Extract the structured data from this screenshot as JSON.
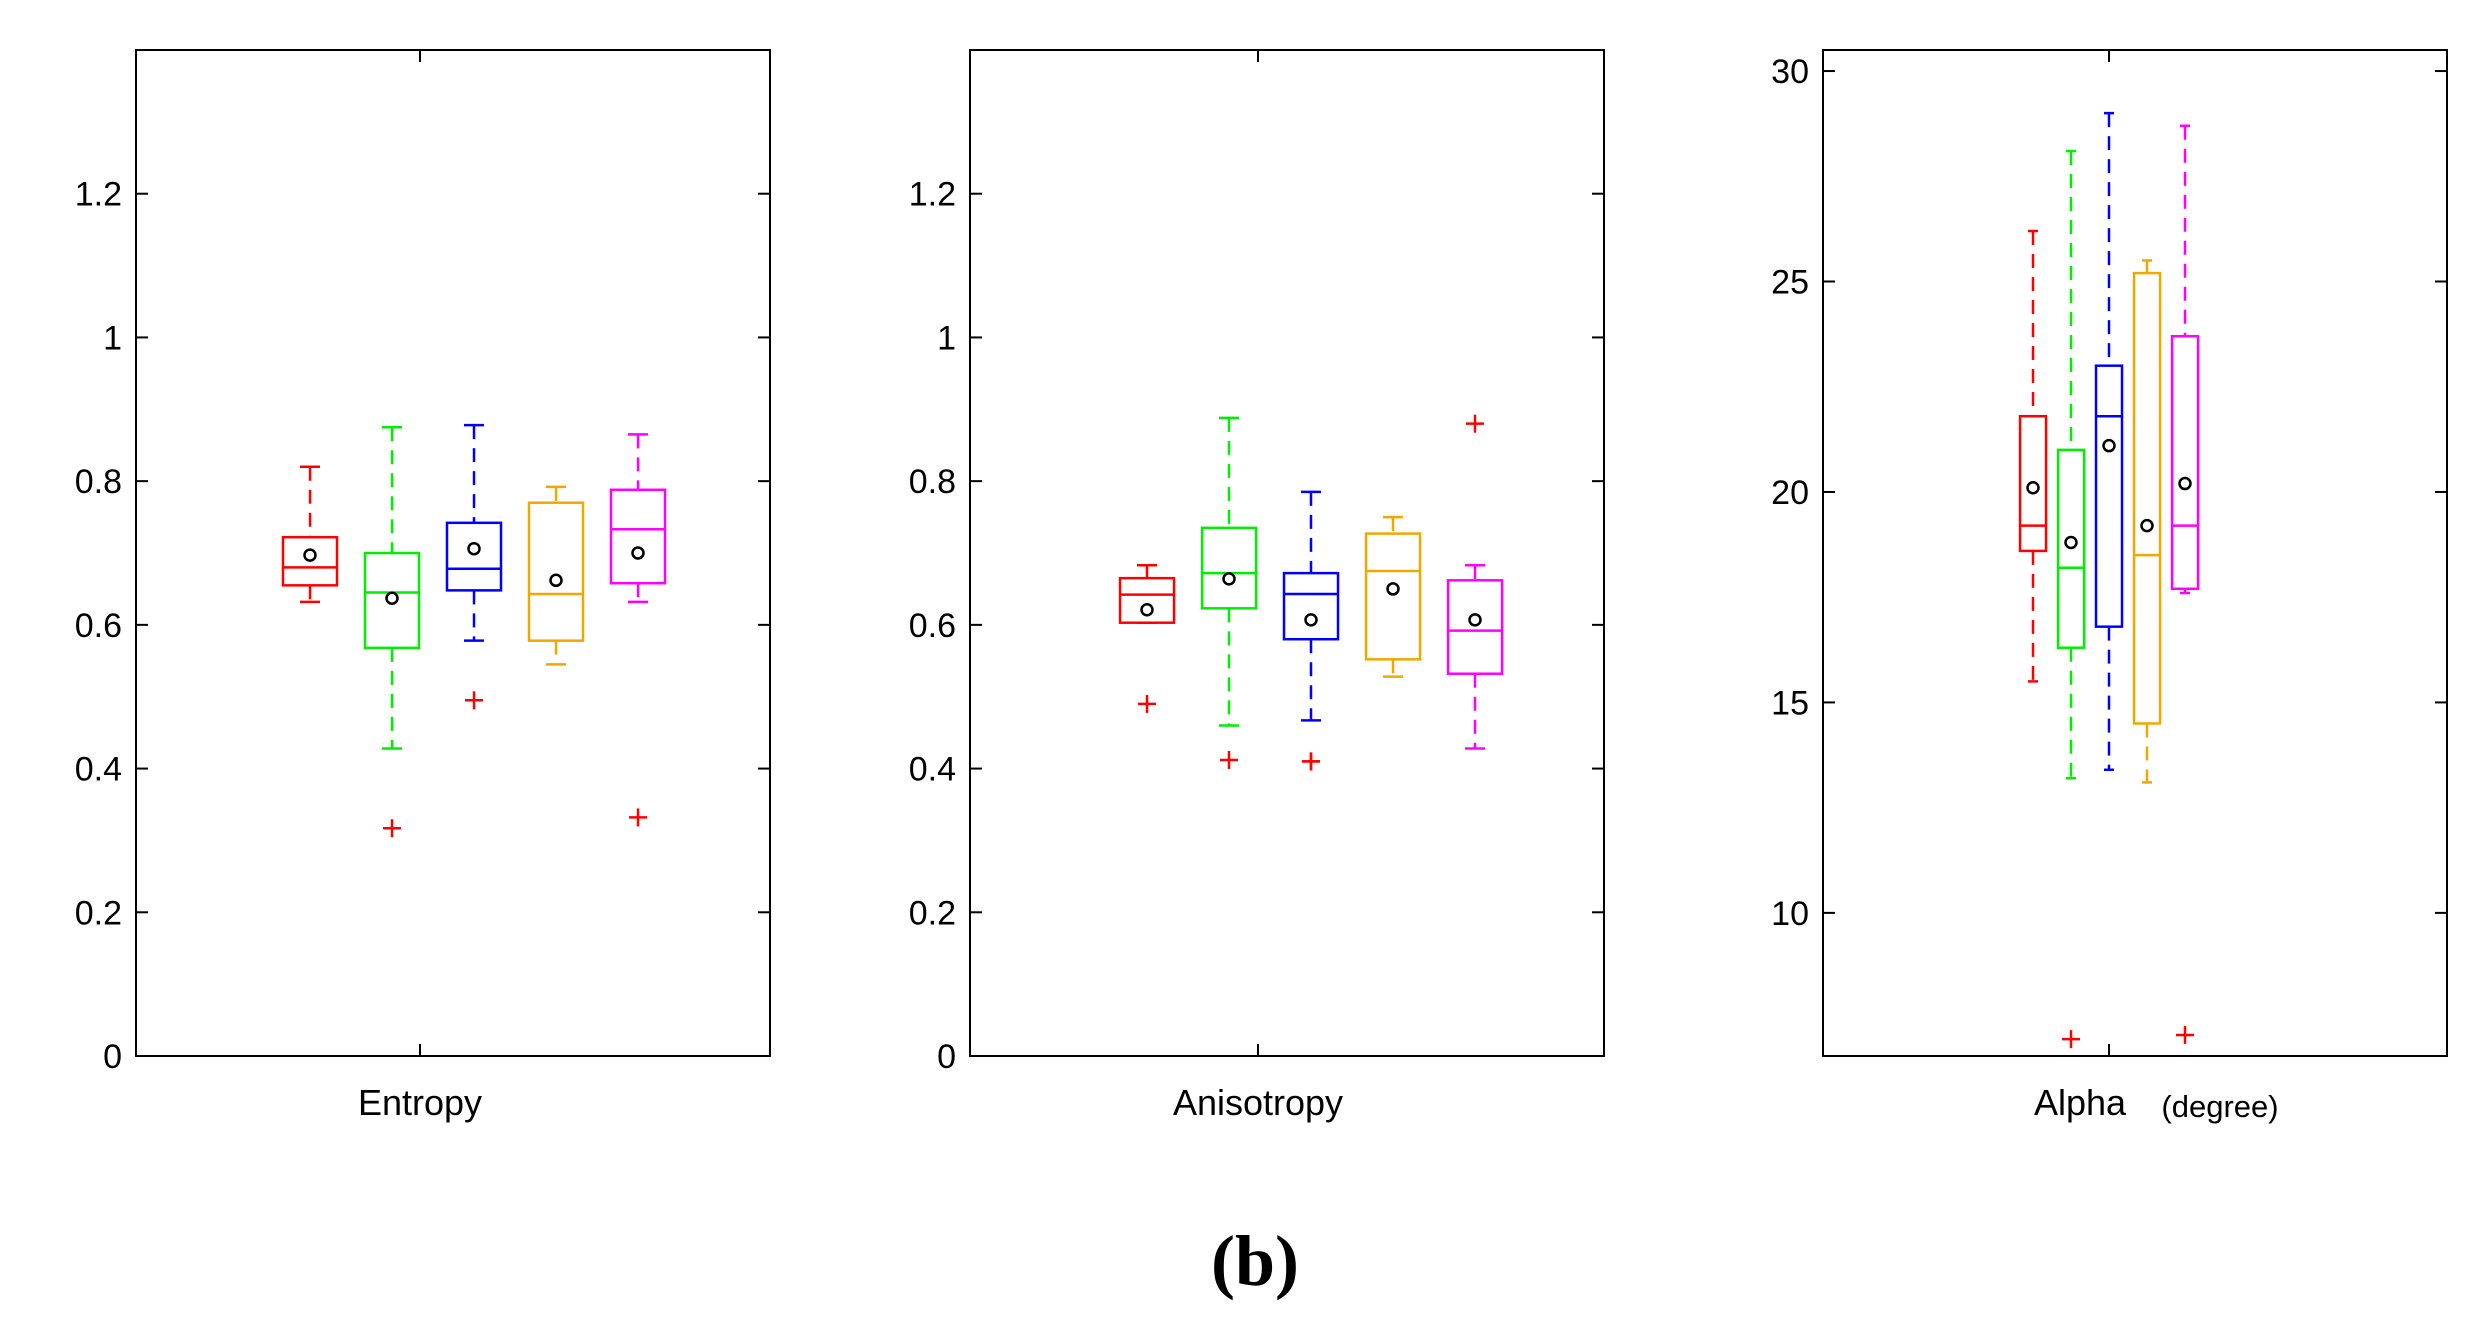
{
  "figure": {
    "caption_label": "(b)",
    "series_colors": [
      "#ff0000",
      "#00ee00",
      "#0000ff",
      "#f0a800",
      "#ff00ff"
    ],
    "mean_marker_color": "#000000",
    "outlier_color": "#ff0000"
  },
  "chart_data": [
    {
      "type": "boxplot",
      "title": "",
      "xlabel": "Entropy",
      "xlabel_unit": "",
      "ylim": [
        0,
        1.4
      ],
      "yticks": [
        0,
        0.2,
        0.4,
        0.6,
        0.8,
        1,
        1.2
      ],
      "ytick_labels": [
        "0",
        "0.2",
        "0.4",
        "0.6",
        "0.8",
        "1",
        "1.2"
      ],
      "grid": false,
      "boxes": [
        {
          "min": 0.632,
          "q1": 0.655,
          "median": 0.68,
          "q3": 0.722,
          "max": 0.82,
          "mean": 0.697,
          "outliers": []
        },
        {
          "min": 0.428,
          "q1": 0.568,
          "median": 0.645,
          "q3": 0.7,
          "max": 0.875,
          "mean": 0.637,
          "outliers": [
            0.317
          ]
        },
        {
          "min": 0.578,
          "q1": 0.648,
          "median": 0.678,
          "q3": 0.742,
          "max": 0.878,
          "mean": 0.706,
          "outliers": [
            0.495
          ]
        },
        {
          "min": 0.545,
          "q1": 0.578,
          "median": 0.643,
          "q3": 0.77,
          "max": 0.792,
          "mean": 0.662,
          "outliers": []
        },
        {
          "min": 0.632,
          "q1": 0.658,
          "median": 0.733,
          "q3": 0.788,
          "max": 0.865,
          "mean": 0.7,
          "outliers": [
            0.332
          ]
        }
      ]
    },
    {
      "type": "boxplot",
      "title": "",
      "xlabel": "Anisotropy",
      "xlabel_unit": "",
      "ylim": [
        0,
        1.4
      ],
      "yticks": [
        0,
        0.2,
        0.4,
        0.6,
        0.8,
        1,
        1.2
      ],
      "ytick_labels": [
        "0",
        "0.2",
        "0.4",
        "0.6",
        "0.8",
        "1",
        "1.2"
      ],
      "grid": false,
      "boxes": [
        {
          "min": 0.603,
          "q1": 0.603,
          "median": 0.642,
          "q3": 0.665,
          "max": 0.683,
          "mean": 0.621,
          "outliers": [
            0.49
          ]
        },
        {
          "min": 0.46,
          "q1": 0.623,
          "median": 0.672,
          "q3": 0.735,
          "max": 0.888,
          "mean": 0.664,
          "outliers": [
            0.412
          ]
        },
        {
          "min": 0.467,
          "q1": 0.58,
          "median": 0.643,
          "q3": 0.672,
          "max": 0.785,
          "mean": 0.607,
          "outliers": [
            0.41,
            0.41
          ]
        },
        {
          "min": 0.528,
          "q1": 0.552,
          "median": 0.675,
          "q3": 0.727,
          "max": 0.75,
          "mean": 0.65,
          "outliers": []
        },
        {
          "min": 0.428,
          "q1": 0.532,
          "median": 0.592,
          "q3": 0.662,
          "max": 0.683,
          "mean": 0.607,
          "outliers": [
            0.88
          ]
        }
      ]
    },
    {
      "type": "boxplot",
      "title": "",
      "xlabel": "Alpha",
      "xlabel_unit": "(degree)",
      "ylim": [
        6.6,
        30.5
      ],
      "yticks": [
        10,
        15,
        20,
        25,
        30
      ],
      "ytick_labels": [
        "10",
        "15",
        "20",
        "25",
        "30"
      ],
      "grid": false,
      "boxes": [
        {
          "min": 15.5,
          "q1": 18.6,
          "median": 19.2,
          "q3": 21.8,
          "max": 26.2,
          "mean": 20.1,
          "outliers": []
        },
        {
          "min": 13.2,
          "q1": 16.3,
          "median": 18.2,
          "q3": 21.0,
          "max": 28.1,
          "mean": 18.8,
          "outliers": [
            7.0
          ]
        },
        {
          "min": 13.4,
          "q1": 16.8,
          "median": 21.8,
          "q3": 23.0,
          "max": 29.0,
          "mean": 21.1,
          "outliers": []
        },
        {
          "min": 13.1,
          "q1": 14.5,
          "median": 18.5,
          "q3": 25.2,
          "max": 25.5,
          "mean": 19.2,
          "outliers": []
        },
        {
          "min": 17.6,
          "q1": 17.7,
          "median": 19.2,
          "q3": 23.7,
          "max": 28.7,
          "mean": 20.2,
          "outliers": [
            7.1
          ]
        }
      ]
    }
  ]
}
